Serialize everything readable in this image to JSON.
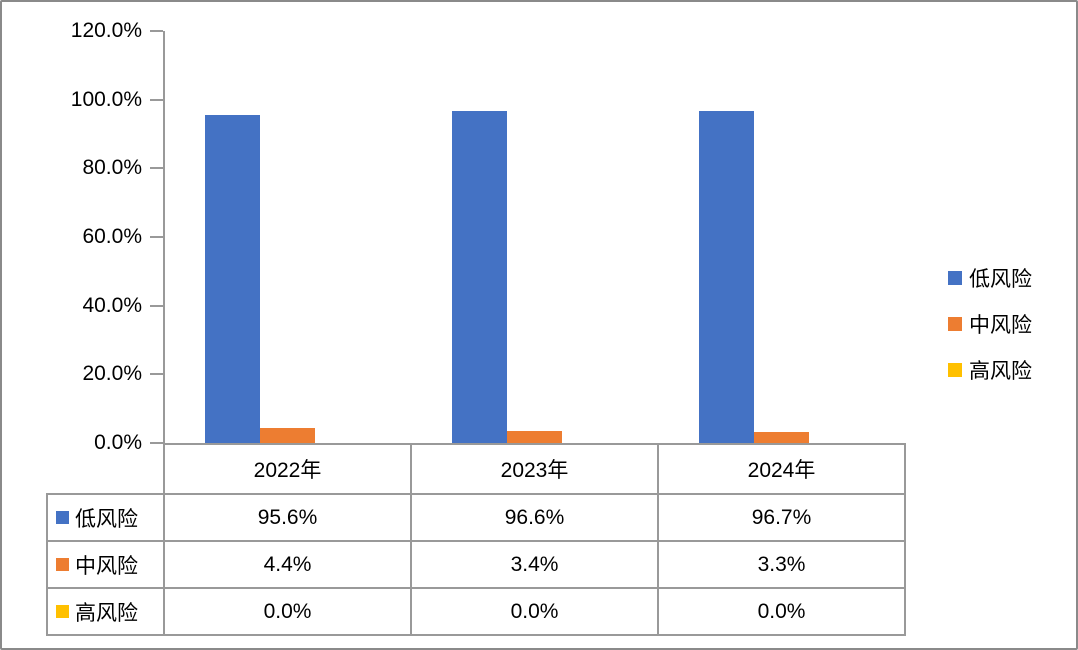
{
  "chart_data": {
    "type": "bar",
    "title": "",
    "categories": [
      "2022年",
      "2023年",
      "2024年"
    ],
    "series": [
      {
        "name": "低风险",
        "color": "#4472C4",
        "values": [
          95.6,
          96.6,
          96.7
        ],
        "formatted": [
          "95.6%",
          "96.6%",
          "96.7%"
        ]
      },
      {
        "name": "中风险",
        "color": "#ED7D31",
        "values": [
          4.4,
          3.4,
          3.3
        ],
        "formatted": [
          "4.4%",
          "3.4%",
          "3.3%"
        ]
      },
      {
        "name": "高风险",
        "color": "#FFC000",
        "values": [
          0.0,
          0.0,
          0.0
        ],
        "formatted": [
          "0.0%",
          "0.0%",
          "0.0%"
        ]
      }
    ],
    "ylim": [
      0,
      120
    ],
    "ytick_step": 20,
    "ytick_labels": [
      "120.0%",
      "100.0%",
      "80.0%",
      "60.0%",
      "40.0%",
      "20.0%",
      "0.0%"
    ],
    "grid": false,
    "legend_position": "right",
    "data_table_shown": true
  },
  "styles": {
    "axis_color": "#999999",
    "table_border_color": "#999999",
    "frame_border_color": "#8a8a8a",
    "text_color": "#000000",
    "background": "#ffffff"
  }
}
